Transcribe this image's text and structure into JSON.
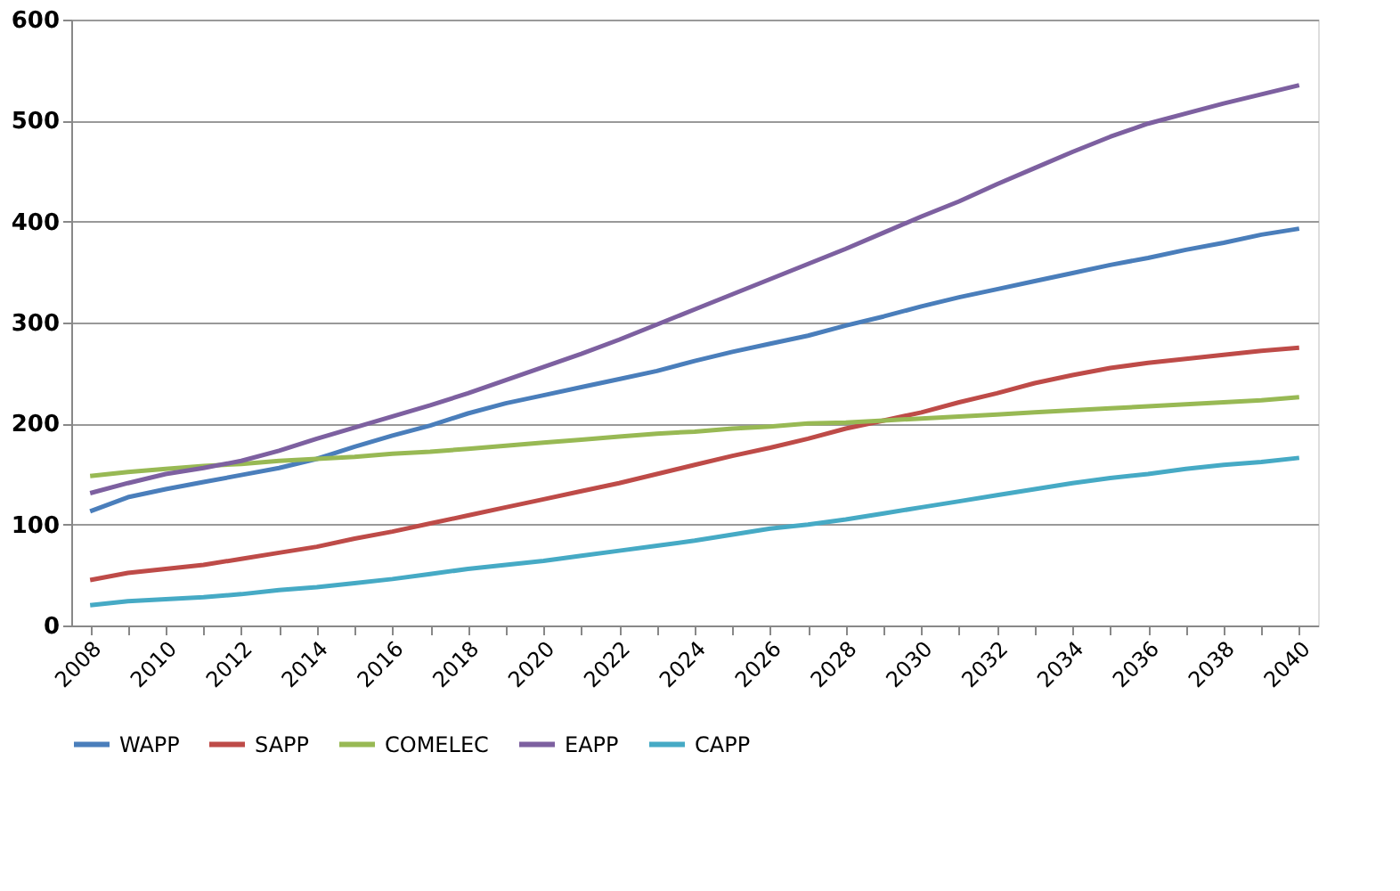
{
  "chart_data": {
    "type": "line",
    "categories": [
      "2008",
      null,
      "2010",
      null,
      "2012",
      null,
      "2014",
      null,
      "2016",
      null,
      "2018",
      null,
      "2020",
      null,
      "2022",
      null,
      "2024",
      null,
      "2026",
      null,
      "2028",
      null,
      "2030",
      null,
      "2032",
      null,
      "2034",
      null,
      "2036",
      null,
      "2038",
      null,
      "2040"
    ],
    "series": [
      {
        "name": "WAPP",
        "color": "#4a7ebb",
        "values": [
          113,
          127,
          135,
          142,
          149,
          156,
          165,
          177,
          188,
          198,
          210,
          220,
          228,
          236,
          244,
          252,
          262,
          271,
          279,
          287,
          297,
          306,
          316,
          325,
          333,
          341,
          349,
          357,
          364,
          372,
          379,
          387,
          393
        ]
      },
      {
        "name": "SAPP",
        "color": "#be4b48",
        "values": [
          45,
          52,
          56,
          60,
          66,
          72,
          78,
          86,
          93,
          101,
          109,
          117,
          125,
          133,
          141,
          150,
          159,
          168,
          176,
          185,
          195,
          203,
          211,
          221,
          230,
          240,
          248,
          255,
          260,
          264,
          268,
          272,
          275
        ]
      },
      {
        "name": "COMELEC",
        "color": "#98b954",
        "values": [
          148,
          152,
          155,
          158,
          160,
          163,
          165,
          167,
          170,
          172,
          175,
          178,
          181,
          184,
          187,
          190,
          192,
          195,
          197,
          200,
          201,
          203,
          205,
          207,
          209,
          211,
          213,
          215,
          217,
          219,
          221,
          223,
          226
        ]
      },
      {
        "name": "EAPP",
        "color": "#7d60a0",
        "values": [
          131,
          141,
          150,
          156,
          163,
          173,
          185,
          196,
          207,
          218,
          230,
          243,
          256,
          269,
          283,
          298,
          313,
          328,
          343,
          358,
          373,
          389,
          405,
          420,
          437,
          453,
          469,
          484,
          497,
          507,
          517,
          526,
          535
        ]
      },
      {
        "name": "CAPP",
        "color": "#46aac5",
        "values": [
          20,
          24,
          26,
          28,
          31,
          35,
          38,
          42,
          46,
          51,
          56,
          60,
          64,
          69,
          74,
          79,
          84,
          90,
          96,
          100,
          105,
          111,
          117,
          123,
          129,
          135,
          141,
          146,
          150,
          155,
          159,
          162,
          166
        ]
      }
    ],
    "ylim": [
      0,
      600
    ],
    "yticks": [
      0,
      100,
      200,
      300,
      400,
      500,
      600
    ],
    "grid": "y",
    "legend": "bottom",
    "marker": "none",
    "line_style": "solid"
  }
}
